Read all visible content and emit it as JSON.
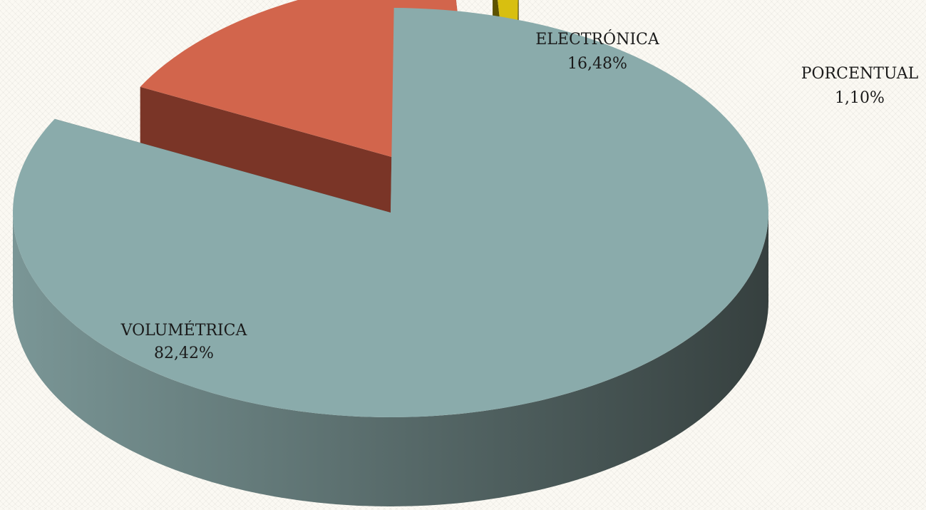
{
  "chart_data": {
    "type": "pie",
    "style": "3d-exploded",
    "slices": [
      {
        "label": "VOLUMÉTRICA",
        "value": 82.42,
        "display": "82,42%",
        "top": "#8aabab",
        "side_light": "#7a9696",
        "side_dark": "#36403f"
      },
      {
        "label": "ELECTRÓNICA",
        "value": 16.48,
        "display": "16,48%",
        "top": "#d2654c",
        "side_light": "#7a3527",
        "side_dark": "#5e2a20"
      },
      {
        "label": "PORCENTUAL",
        "value": 1.1,
        "display": "1,10%",
        "top": "#d8bf10",
        "side_light": "#5e5300",
        "side_dark": "#4f4500"
      }
    ]
  }
}
